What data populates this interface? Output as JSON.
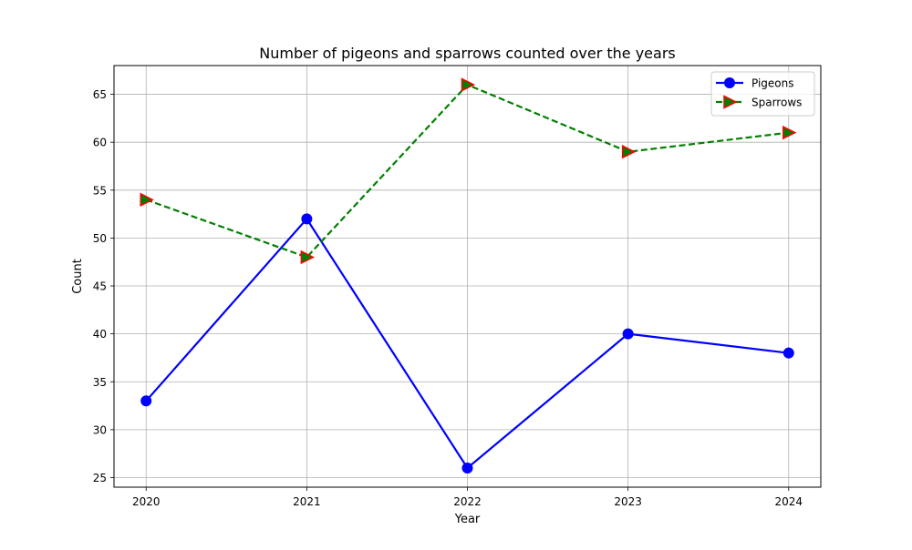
{
  "chart_data": {
    "type": "line",
    "title": "Number of pigeons and sparrows counted over the years",
    "xlabel": "Year",
    "ylabel": "Count",
    "x": [
      2020,
      2021,
      2022,
      2023,
      2024
    ],
    "xlim": [
      2019.8,
      2024.2
    ],
    "ylim": [
      24,
      68
    ],
    "yticks": [
      25,
      30,
      35,
      40,
      45,
      50,
      55,
      60,
      65
    ],
    "grid": true,
    "legend_position": "top-right",
    "series": [
      {
        "name": "Pigeons",
        "values": [
          33,
          52,
          26,
          40,
          38
        ],
        "color": "#0000ff",
        "line_style": "solid",
        "marker": "circle",
        "marker_edge_color": "#0000ff"
      },
      {
        "name": "Sparrows",
        "values": [
          54,
          48,
          66,
          59,
          61
        ],
        "color": "#008000",
        "line_style": "dashed",
        "marker": "triangle-right",
        "marker_edge_color": "#ff0000"
      }
    ]
  }
}
